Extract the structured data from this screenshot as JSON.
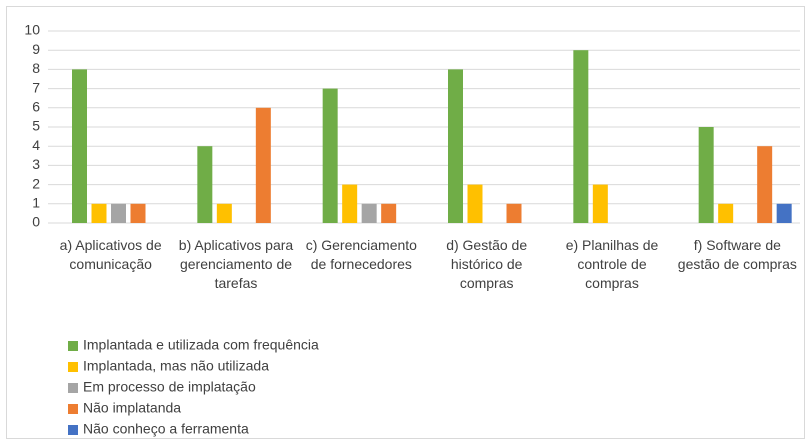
{
  "chart_data": {
    "type": "bar",
    "categories": [
      "a) Aplicativos de comunicação",
      "b) Aplicativos para gerenciamento de tarefas",
      "c) Gerenciamento de fornecedores",
      "d) Gestão de histórico de compras",
      "e) Planilhas de controle de compras",
      "f) Software de gestão de compras"
    ],
    "series": [
      {
        "name": "Implantada e utilizada com frequência",
        "color": "#70ad47",
        "values": [
          8,
          4,
          7,
          8,
          9,
          5
        ]
      },
      {
        "name": "Implantada, mas não utilizada",
        "color": "#ffc000",
        "values": [
          1,
          1,
          2,
          2,
          2,
          1
        ]
      },
      {
        "name": "Em processo de implatação",
        "color": "#a5a5a5",
        "values": [
          1,
          0,
          1,
          0,
          0,
          0
        ]
      },
      {
        "name": "Não implatanda",
        "color": "#ed7d31",
        "values": [
          1,
          6,
          1,
          1,
          0,
          4
        ]
      },
      {
        "name": "Não conheço a ferramenta",
        "color": "#4472c4",
        "values": [
          0,
          0,
          0,
          0,
          0,
          1
        ]
      }
    ],
    "ylim": [
      0,
      10
    ],
    "yticks": [
      0,
      1,
      2,
      3,
      4,
      5,
      6,
      7,
      8,
      9,
      10
    ],
    "grid": true,
    "legend": "bottom-left"
  }
}
